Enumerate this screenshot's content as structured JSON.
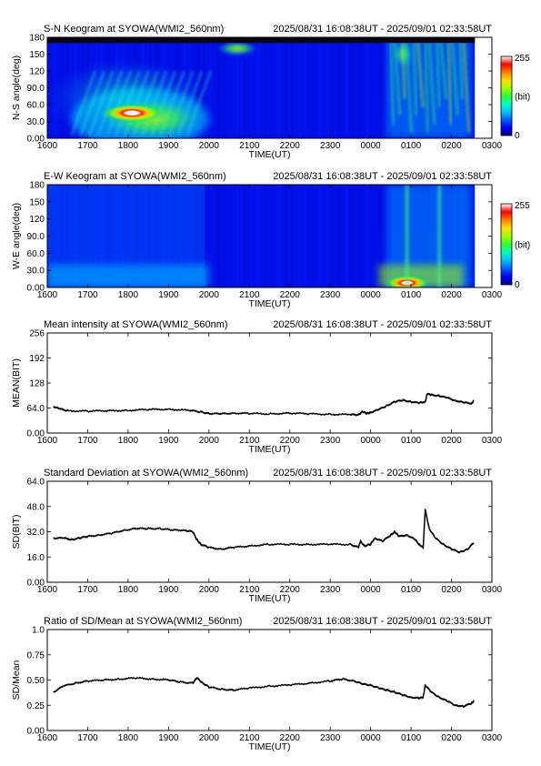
{
  "colors": {
    "background": "#ffffff",
    "frame": "#000000",
    "line": "#000000",
    "colormap": [
      "#000080",
      "#0000ff",
      "#0060ff",
      "#00c0ff",
      "#00ffc0",
      "#30ff30",
      "#a0ff00",
      "#ffe000",
      "#ff8000",
      "#ff0000",
      "#ffffff"
    ]
  },
  "chart_data": [
    {
      "type": "heatmap",
      "title": "S-N Keogram at SYOWA(WMI2_560nm)",
      "period": "2025/08/31 16:08:38UT - 2025/09/01 02:33:58UT",
      "xlabel": "TIME(UT)",
      "ylabel": "N-S angle(deg)",
      "xticks": [
        "1600",
        "1700",
        "1800",
        "1900",
        "2000",
        "2100",
        "2200",
        "2300",
        "0000",
        "0100",
        "0200",
        "0300"
      ],
      "yticks": [
        "0.00",
        "30.0",
        "60.0",
        "90.0",
        "120",
        "150",
        "180"
      ],
      "xlim": [
        16.0,
        27.0
      ],
      "ylim": [
        0,
        180
      ],
      "colorbar": {
        "min": "0",
        "max": "255",
        "label": "(bit)"
      },
      "features": [
        {
          "x": 18.1,
          "y": 45,
          "intensity": 255
        },
        {
          "x": 20.7,
          "y": 160,
          "intensity": 150
        },
        {
          "x": 24.8,
          "y": 150,
          "intensity": 200
        }
      ]
    },
    {
      "type": "heatmap",
      "title": "E-W Keogram at SYOWA(WMI2_560nm)",
      "period": "2025/08/31 16:08:38UT - 2025/09/01 02:33:58UT",
      "xlabel": "TIME(UT)",
      "ylabel": "W-E angle(deg)",
      "xticks": [
        "1600",
        "1700",
        "1800",
        "1900",
        "2000",
        "2100",
        "2200",
        "2300",
        "0000",
        "0100",
        "0200",
        "0300"
      ],
      "yticks": [
        "0.00",
        "30.0",
        "60.0",
        "90.0",
        "120",
        "150",
        "180"
      ],
      "xlim": [
        16.0,
        27.0
      ],
      "ylim": [
        0,
        180
      ],
      "colorbar": {
        "min": "0",
        "max": "255",
        "label": "(bit)"
      },
      "features": [
        {
          "x": 24.9,
          "y": 8,
          "intensity": 255
        },
        {
          "x": 24.9,
          "y": 90,
          "intensity": 120
        },
        {
          "x": 25.7,
          "y": 90,
          "intensity": 120
        }
      ]
    },
    {
      "type": "line",
      "title": "Mean intensity at SYOWA(WMI2_560nm)",
      "period": "2025/08/31 16:08:38UT - 2025/09/01 02:33:58UT",
      "xlabel": "TIME(UT)",
      "ylabel": "MEAN(BIT)",
      "xticks": [
        "1600",
        "1700",
        "1800",
        "1900",
        "2000",
        "2100",
        "2200",
        "2300",
        "0000",
        "0100",
        "0200",
        "0300"
      ],
      "yticks": [
        "0.00",
        "64.0",
        "128",
        "192",
        "256"
      ],
      "xlim": [
        16.0,
        27.0
      ],
      "ylim": [
        0,
        256
      ],
      "x": [
        16.15,
        16.3,
        16.5,
        17.0,
        17.5,
        18.0,
        18.5,
        19.0,
        19.5,
        19.8,
        20.0,
        20.3,
        20.6,
        21.0,
        21.5,
        22.0,
        22.5,
        23.0,
        23.5,
        23.7,
        23.8,
        23.9,
        24.0,
        24.2,
        24.4,
        24.6,
        24.8,
        25.0,
        25.2,
        25.35,
        25.4,
        25.5,
        25.7,
        25.9,
        26.1,
        26.3,
        26.5,
        26.55
      ],
      "series": [
        {
          "values": [
            68,
            62,
            57,
            56,
            57,
            58,
            60,
            61,
            58,
            54,
            50,
            49,
            51,
            50,
            49,
            51,
            49,
            48,
            47,
            47,
            55,
            50,
            53,
            60,
            70,
            80,
            84,
            80,
            77,
            80,
            100,
            98,
            95,
            90,
            83,
            78,
            76,
            82
          ]
        }
      ]
    },
    {
      "type": "line",
      "title": "Standard Deviation at SYOWA(WMI2_560nm)",
      "period": "2025/08/31 16:08:38UT - 2025/09/01 02:33:58UT",
      "xlabel": "TIME(UT)",
      "ylabel": "SD(BIT)",
      "xticks": [
        "1600",
        "1700",
        "1800",
        "1900",
        "2000",
        "2100",
        "2200",
        "2300",
        "0000",
        "0100",
        "0200",
        "0300"
      ],
      "yticks": [
        "0.00",
        "16.0",
        "32.0",
        "48.0",
        "64.0"
      ],
      "xlim": [
        16.0,
        27.0
      ],
      "ylim": [
        0,
        64
      ],
      "x": [
        16.15,
        16.4,
        16.6,
        16.8,
        17.0,
        17.3,
        17.6,
        17.9,
        18.2,
        18.5,
        18.8,
        19.1,
        19.4,
        19.6,
        19.7,
        19.8,
        20.0,
        20.3,
        20.6,
        21.0,
        21.5,
        22.0,
        22.5,
        23.0,
        23.5,
        23.7,
        23.75,
        23.85,
        24.0,
        24.1,
        24.3,
        24.5,
        24.6,
        24.7,
        24.9,
        25.1,
        25.2,
        25.3,
        25.35,
        25.45,
        25.6,
        25.8,
        26.0,
        26.2,
        26.4,
        26.55
      ],
      "series": [
        {
          "values": [
            28,
            28,
            27,
            28,
            29,
            30,
            31,
            33,
            34,
            34,
            34,
            33,
            33,
            32,
            27,
            24,
            22,
            21,
            22,
            23,
            24,
            24,
            24,
            24,
            24,
            22,
            26,
            23,
            24,
            28,
            26,
            30,
            32,
            29,
            30,
            27,
            24,
            22,
            46,
            34,
            28,
            24,
            21,
            19,
            21,
            25
          ]
        }
      ]
    },
    {
      "type": "line",
      "title": "Ratio of SD/Mean at SYOWA(WMI2_560nm)",
      "period": "2025/08/31 16:08:38UT - 2025/09/01 02:33:58UT",
      "xlabel": "TIME(UT)",
      "ylabel": "SD/Mean",
      "xticks": [
        "1600",
        "1700",
        "1800",
        "1900",
        "2000",
        "2100",
        "2200",
        "2300",
        "0000",
        "0100",
        "0200",
        "0300"
      ],
      "yticks": [
        "0.00",
        "0.25",
        "0.50",
        "0.75",
        "1.0"
      ],
      "xlim": [
        16.0,
        27.0
      ],
      "ylim": [
        0,
        1.0
      ],
      "x": [
        16.15,
        16.4,
        16.7,
        17.0,
        17.4,
        17.8,
        18.2,
        18.6,
        19.0,
        19.3,
        19.6,
        19.7,
        19.85,
        20.0,
        20.3,
        20.6,
        21.0,
        21.5,
        22.0,
        22.5,
        23.0,
        23.3,
        23.6,
        23.8,
        24.0,
        24.2,
        24.4,
        24.6,
        24.8,
        25.0,
        25.2,
        25.3,
        25.35,
        25.5,
        25.7,
        25.9,
        26.1,
        26.3,
        26.5,
        26.55
      ],
      "series": [
        {
          "values": [
            0.38,
            0.44,
            0.47,
            0.49,
            0.5,
            0.51,
            0.52,
            0.51,
            0.5,
            0.48,
            0.47,
            0.52,
            0.47,
            0.43,
            0.41,
            0.4,
            0.42,
            0.44,
            0.45,
            0.47,
            0.49,
            0.51,
            0.49,
            0.46,
            0.45,
            0.42,
            0.4,
            0.38,
            0.35,
            0.33,
            0.32,
            0.33,
            0.45,
            0.38,
            0.33,
            0.29,
            0.25,
            0.24,
            0.27,
            0.29
          ]
        }
      ]
    }
  ]
}
